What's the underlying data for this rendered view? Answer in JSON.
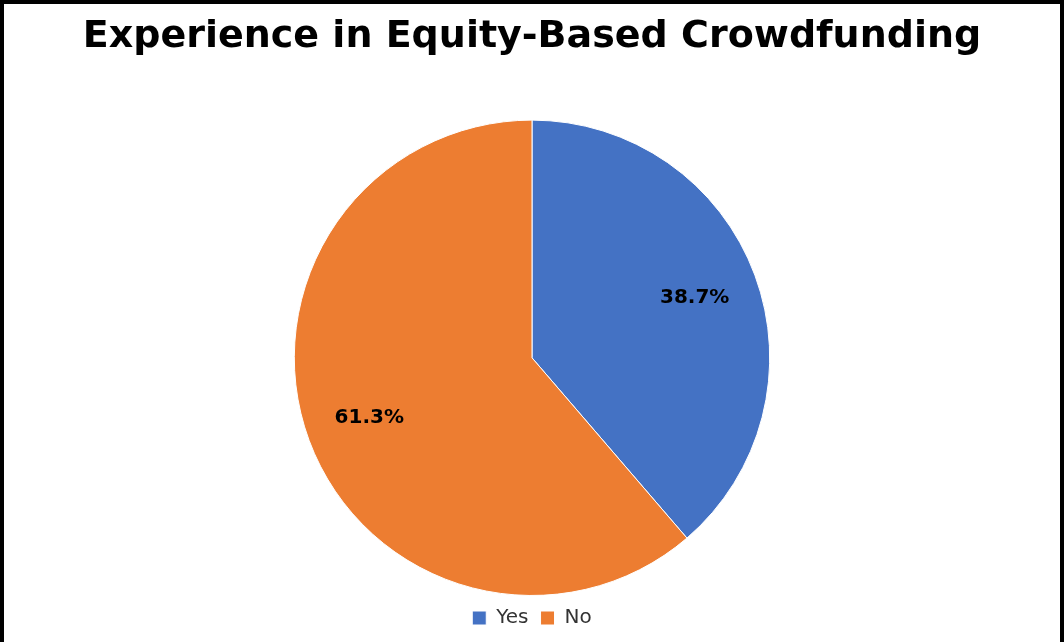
{
  "chart_data": {
    "type": "pie",
    "title": "Experience in Equity-Based Crowdfunding",
    "categories": [
      "Yes",
      "No"
    ],
    "values": [
      38.7,
      61.3
    ],
    "colors": [
      "#4472c4",
      "#ed7d31"
    ],
    "value_labels": [
      "38.7%",
      "61.3%"
    ],
    "legend": "bottom"
  }
}
